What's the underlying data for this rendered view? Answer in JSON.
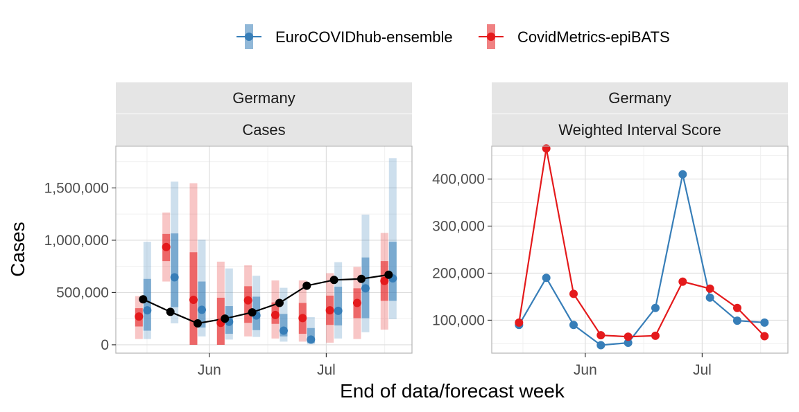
{
  "legend": {
    "items": [
      {
        "label": "EuroCOVIDhub-ensemble",
        "color": "#377EB8"
      },
      {
        "label": "CovidMetrics-epiBATS",
        "color": "#E41A1C"
      }
    ]
  },
  "x_axis_title": "End of data/forecast week",
  "chart_data": [
    {
      "type": "line",
      "panel": "left",
      "strip_labels": [
        "Germany",
        "Cases"
      ],
      "ylabel": "Cases",
      "ylim": [
        -80000,
        1900000
      ],
      "y_ticks": [
        0,
        500000,
        1000000,
        1500000
      ],
      "y_tick_labels": [
        "0",
        "500,000",
        "1,000,000",
        "1,500,000"
      ],
      "x_ticks": [
        "2021-06-01",
        "2021-07-01"
      ],
      "x_tick_labels": [
        "Jun",
        "Jul"
      ],
      "xlim": [
        "2021-05-08",
        "2021-07-23"
      ],
      "grid": true,
      "observed": {
        "color": "#000000",
        "points": [
          {
            "date": "2021-05-15",
            "value": 435000
          },
          {
            "date": "2021-05-22",
            "value": 315000
          },
          {
            "date": "2021-05-29",
            "value": 205000
          },
          {
            "date": "2021-06-05",
            "value": 250000
          },
          {
            "date": "2021-06-12",
            "value": 310000
          },
          {
            "date": "2021-06-19",
            "value": 400000
          },
          {
            "date": "2021-06-26",
            "value": 565000
          },
          {
            "date": "2021-07-03",
            "value": 620000
          },
          {
            "date": "2021-07-10",
            "value": 630000
          },
          {
            "date": "2021-07-17",
            "value": 670000
          }
        ]
      },
      "series": [
        {
          "name": "EuroCOVIDhub-ensemble",
          "color": "#377EB8",
          "forecasts": [
            {
              "date": "2021-05-15",
              "median": 330000,
              "lo50": 135000,
              "hi50": 630000,
              "lo90": 55000,
              "hi90": 985000
            },
            {
              "date": "2021-05-22",
              "median": 645000,
              "lo50": 360000,
              "hi50": 1065000,
              "lo90": 205000,
              "hi90": 1560000
            },
            {
              "date": "2021-05-29",
              "median": 335000,
              "lo50": 165000,
              "hi50": 605000,
              "lo90": 80000,
              "hi90": 1005000
            },
            {
              "date": "2021-06-05",
              "median": 220000,
              "lo50": 105000,
              "hi50": 370000,
              "lo90": 50000,
              "hi90": 730000
            },
            {
              "date": "2021-06-12",
              "median": 280000,
              "lo50": 140000,
              "hi50": 460000,
              "lo90": 75000,
              "hi90": 660000
            },
            {
              "date": "2021-06-19",
              "median": 135000,
              "lo50": 80000,
              "hi50": 295000,
              "lo90": 30000,
              "hi90": 545000
            },
            {
              "date": "2021-06-26",
              "median": 50000,
              "lo50": 20000,
              "hi50": 160000,
              "lo90": 5000,
              "hi90": 265000
            },
            {
              "date": "2021-07-03",
              "median": 325000,
              "lo50": 185000,
              "hi50": 555000,
              "lo90": 60000,
              "hi90": 790000
            },
            {
              "date": "2021-07-10",
              "median": 540000,
              "lo50": 255000,
              "hi50": 835000,
              "lo90": 120000,
              "hi90": 1245000
            },
            {
              "date": "2021-07-17",
              "median": 635000,
              "lo50": 420000,
              "hi50": 985000,
              "lo90": 245000,
              "hi90": 1785000
            }
          ]
        },
        {
          "name": "CovidMetrics-epiBATS",
          "color": "#E41A1C",
          "forecasts": [
            {
              "date": "2021-05-15",
              "median": 270000,
              "lo50": 175000,
              "hi50": 350000,
              "lo90": 55000,
              "hi90": 465000
            },
            {
              "date": "2021-05-22",
              "median": 935000,
              "lo50": 800000,
              "hi50": 1060000,
              "lo90": 605000,
              "hi90": 1265000
            },
            {
              "date": "2021-05-29",
              "median": 430000,
              "lo50": 0,
              "hi50": 885000,
              "lo90": 0,
              "hi90": 1545000
            },
            {
              "date": "2021-06-05",
              "median": 210000,
              "lo50": 0,
              "hi50": 450000,
              "lo90": 0,
              "hi90": 795000
            },
            {
              "date": "2021-06-12",
              "median": 425000,
              "lo50": 210000,
              "hi50": 560000,
              "lo90": 80000,
              "hi90": 760000
            },
            {
              "date": "2021-06-19",
              "median": 285000,
              "lo50": 200000,
              "hi50": 405000,
              "lo90": 60000,
              "hi90": 615000
            },
            {
              "date": "2021-06-26",
              "median": 255000,
              "lo50": 105000,
              "hi50": 400000,
              "lo90": 30000,
              "hi90": 615000
            },
            {
              "date": "2021-07-03",
              "median": 330000,
              "lo50": 190000,
              "hi50": 470000,
              "lo90": 20000,
              "hi90": 685000
            },
            {
              "date": "2021-07-10",
              "median": 400000,
              "lo50": 255000,
              "hi50": 540000,
              "lo90": 55000,
              "hi90": 745000
            },
            {
              "date": "2021-07-17",
              "median": 610000,
              "lo50": 420000,
              "hi50": 800000,
              "lo90": 145000,
              "hi90": 1070000
            }
          ]
        }
      ]
    },
    {
      "type": "line",
      "panel": "right",
      "strip_labels": [
        "Germany",
        "Weighted Interval Score"
      ],
      "ylabel": "",
      "ylim": [
        30000,
        470000
      ],
      "y_ticks": [
        100000,
        200000,
        300000,
        400000
      ],
      "y_tick_labels": [
        "100,000",
        "200,000",
        "300,000",
        "400,000"
      ],
      "x_ticks": [
        "2021-06-01",
        "2021-07-01"
      ],
      "x_tick_labels": [
        "Jun",
        "Jul"
      ],
      "xlim": [
        "2021-05-08",
        "2021-07-23"
      ],
      "grid": true,
      "series": [
        {
          "name": "EuroCOVIDhub-ensemble",
          "color": "#377EB8",
          "points": [
            {
              "date": "2021-05-15",
              "value": 90000
            },
            {
              "date": "2021-05-22",
              "value": 190000
            },
            {
              "date": "2021-05-29",
              "value": 90000
            },
            {
              "date": "2021-06-05",
              "value": 47000
            },
            {
              "date": "2021-06-12",
              "value": 52000
            },
            {
              "date": "2021-06-19",
              "value": 126000
            },
            {
              "date": "2021-06-26",
              "value": 410000
            },
            {
              "date": "2021-07-03",
              "value": 148000
            },
            {
              "date": "2021-07-10",
              "value": 99000
            },
            {
              "date": "2021-07-17",
              "value": 95000
            }
          ]
        },
        {
          "name": "CovidMetrics-epiBATS",
          "color": "#E41A1C",
          "points": [
            {
              "date": "2021-05-15",
              "value": 95000
            },
            {
              "date": "2021-05-22",
              "value": 465000
            },
            {
              "date": "2021-05-29",
              "value": 156000
            },
            {
              "date": "2021-06-05",
              "value": 68000
            },
            {
              "date": "2021-06-12",
              "value": 65000
            },
            {
              "date": "2021-06-19",
              "value": 67000
            },
            {
              "date": "2021-06-26",
              "value": 182000
            },
            {
              "date": "2021-07-03",
              "value": 167000
            },
            {
              "date": "2021-07-10",
              "value": 126000
            },
            {
              "date": "2021-07-17",
              "value": 66000
            }
          ]
        }
      ]
    }
  ]
}
